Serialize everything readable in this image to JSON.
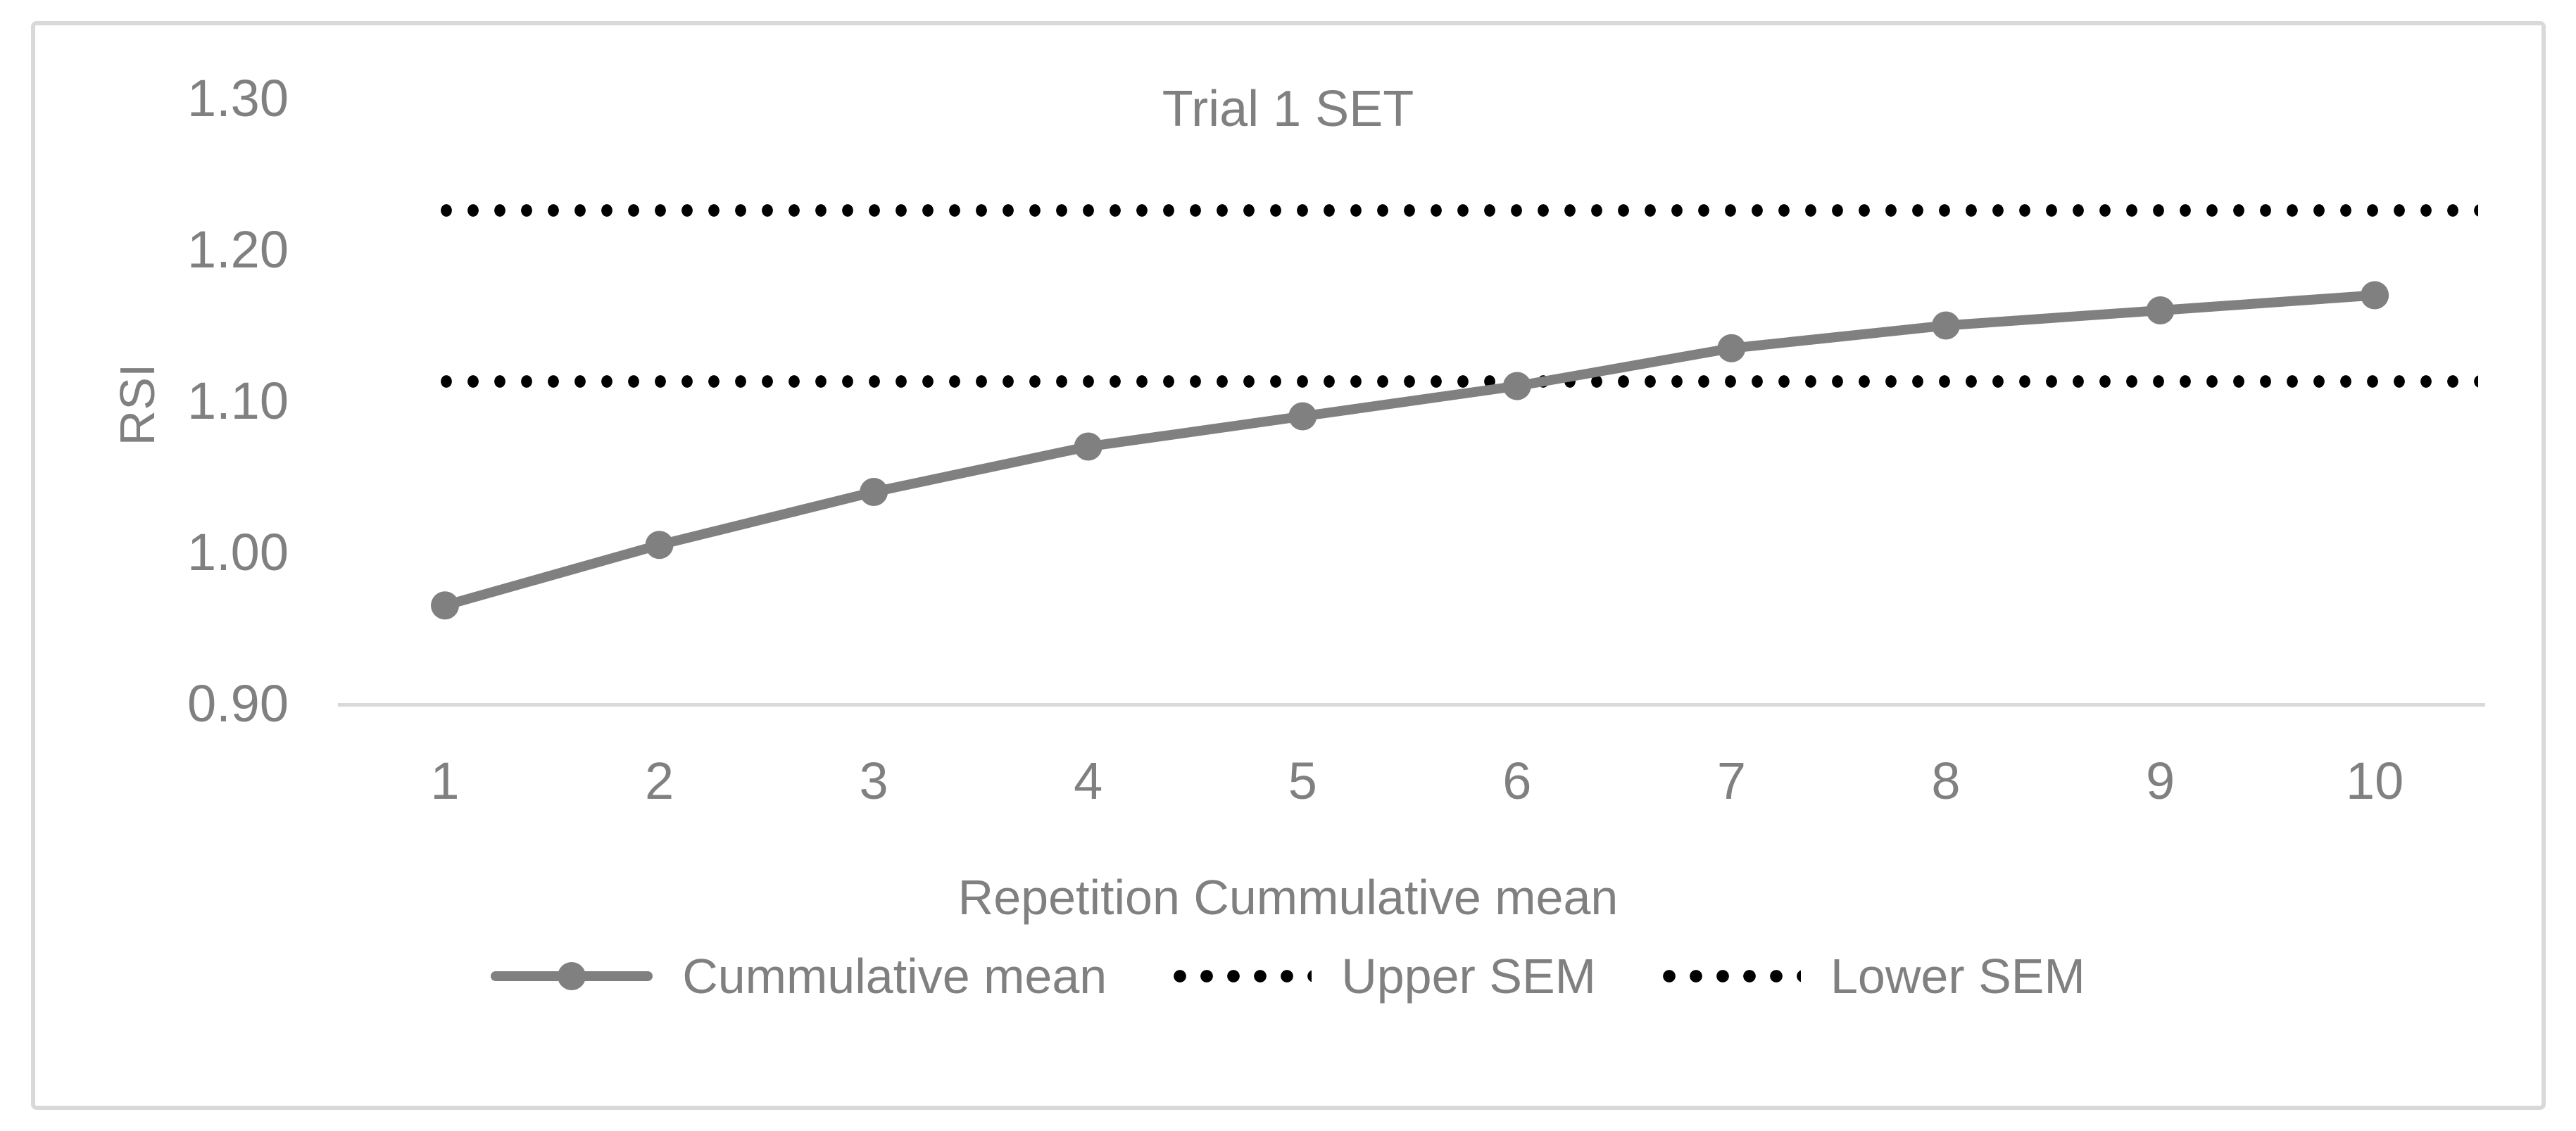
{
  "title": "Trial 1 SET",
  "y_axis": {
    "title": "RSI"
  },
  "x_axis": {
    "title": "Repetition Cummulative mean"
  },
  "legend": {
    "items": [
      {
        "label": "Cummulative mean",
        "marker": "gray-line-with-dot"
      },
      {
        "label": "Upper SEM",
        "marker": "black-dotted"
      },
      {
        "label": "Lower SEM",
        "marker": "black-dotted"
      }
    ]
  },
  "colors": {
    "series": "#808080",
    "sem_lines": "#000000",
    "text": "#808080",
    "axis_line": "#d9d9d9",
    "frame_border": "#d9d9d9"
  },
  "chart_data": {
    "type": "line",
    "title": "Trial 1 SET",
    "xlabel": "Repetition Cummulative mean",
    "ylabel": "RSI",
    "x": [
      1,
      2,
      3,
      4,
      5,
      6,
      7,
      8,
      9,
      10
    ],
    "xtick_labels": [
      "1",
      "2",
      "3",
      "4",
      "5",
      "6",
      "7",
      "8",
      "9",
      "10"
    ],
    "yticks": [
      0.9,
      1.0,
      1.1,
      1.2,
      1.3
    ],
    "ytick_labels": [
      "0.90",
      "1.00",
      "1.10",
      "1.20",
      "1.30"
    ],
    "ylim": [
      0.9,
      1.3
    ],
    "grid": false,
    "legend_position": "bottom",
    "series": [
      {
        "name": "Cummulative mean",
        "type": "line",
        "style": "solid",
        "markers": "circle",
        "color": "#808080",
        "values": [
          0.965,
          1.005,
          1.04,
          1.07,
          1.09,
          1.11,
          1.135,
          1.15,
          1.16,
          1.17
        ]
      },
      {
        "name": "Upper SEM",
        "type": "horizontal-line",
        "style": "dotted",
        "color": "#000000",
        "value": 1.226
      },
      {
        "name": "Lower SEM",
        "type": "horizontal-line",
        "style": "dotted",
        "color": "#000000",
        "value": 1.113
      }
    ]
  }
}
